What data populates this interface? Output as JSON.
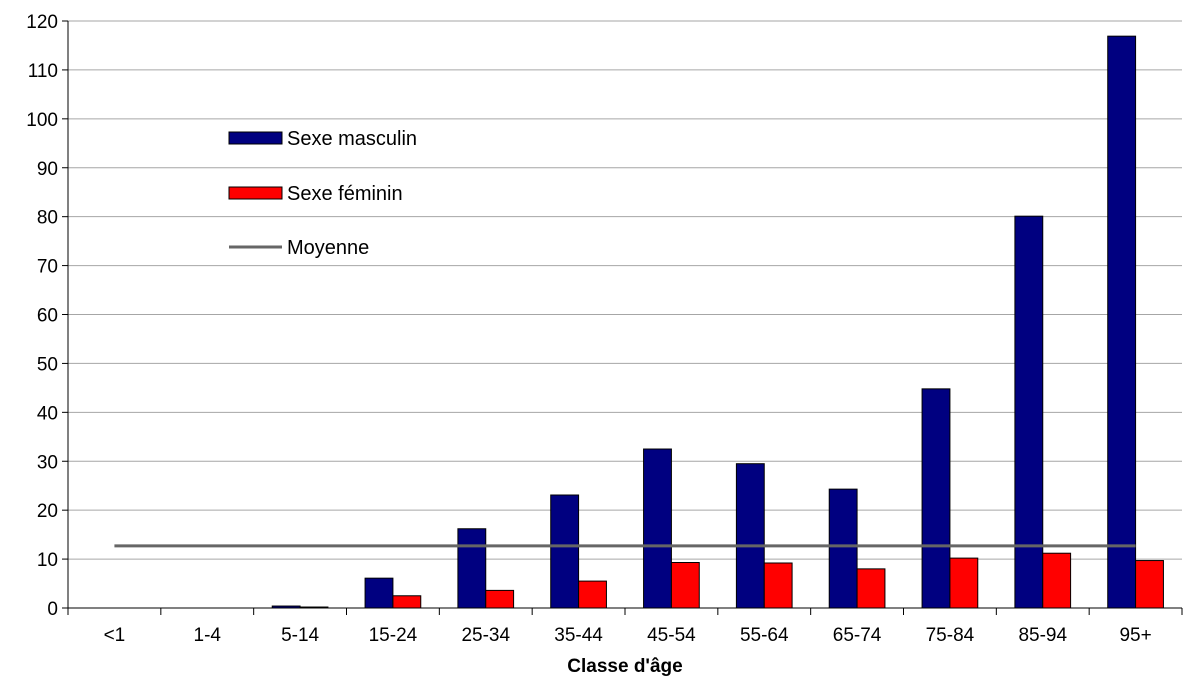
{
  "chart_data": {
    "type": "bar",
    "categories": [
      "<1",
      "1-4",
      "5-14",
      "15-24",
      "25-34",
      "35-44",
      "45-54",
      "55-64",
      "65-74",
      "75-84",
      "85-94",
      "95+"
    ],
    "series": [
      {
        "name": "Sexe masculin",
        "color": "#000080",
        "values": [
          0,
          0,
          0.4,
          6.1,
          16.2,
          23.1,
          32.5,
          29.5,
          24.3,
          44.8,
          80.1,
          116.9
        ]
      },
      {
        "name": "Sexe féminin",
        "color": "#ff0000",
        "values": [
          0,
          0,
          0.2,
          2.5,
          3.6,
          5.5,
          9.3,
          9.2,
          8.0,
          10.2,
          11.2,
          9.7
        ]
      }
    ],
    "reference_line": {
      "name": "Moyenne",
      "color": "#666666",
      "value": 12.7
    },
    "xlabel": "Classe d'âge",
    "ylabel": "",
    "ylim": [
      0,
      120
    ],
    "yticks": [
      0,
      10,
      20,
      30,
      40,
      50,
      60,
      70,
      80,
      90,
      100,
      110,
      120
    ],
    "grid": true,
    "legend_position": "top-left"
  }
}
